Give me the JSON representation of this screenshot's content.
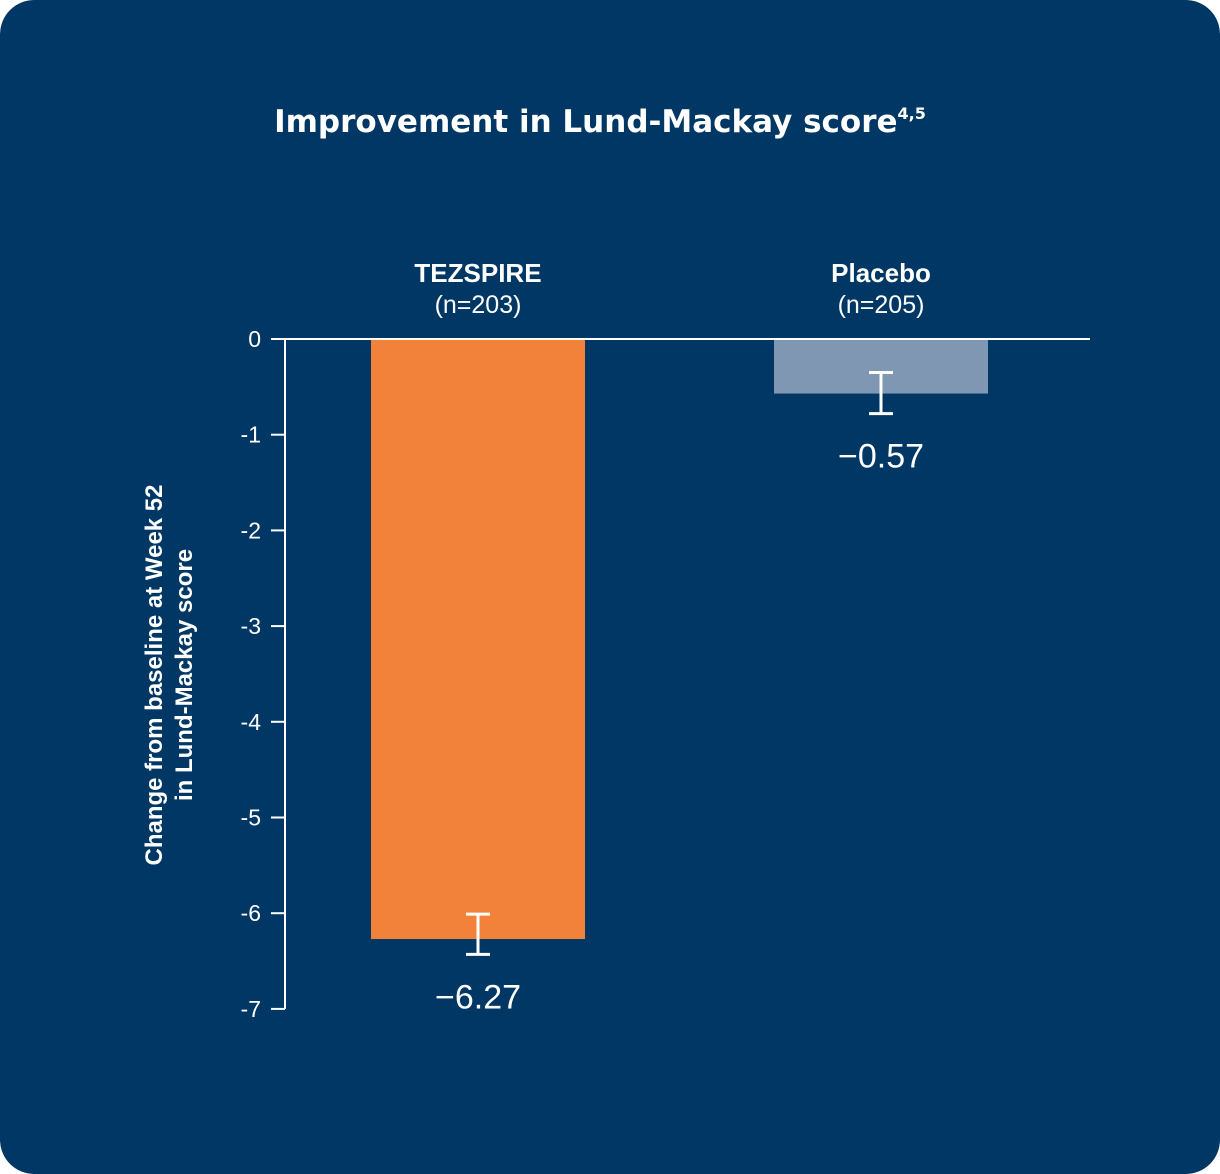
{
  "chart_data": {
    "type": "bar",
    "title": "Improvement in Lund-Mackay score",
    "title_superscript": "4,5",
    "ylabel_lines": [
      "Change from baseline at Week 52",
      "in Lund-Mackay score"
    ],
    "xlabel": "",
    "categories": [
      "TEZSPIRE",
      "Placebo"
    ],
    "category_n": [
      "(n=203)",
      "(n=205)"
    ],
    "values": [
      -6.27,
      -0.57
    ],
    "data_labels": [
      "−6.27",
      "−0.57"
    ],
    "error_bars": [
      {
        "low": -6.43,
        "high": -6.01
      },
      {
        "low": -0.78,
        "high": -0.35
      }
    ],
    "ylim": [
      -7,
      0
    ],
    "yticks": [
      0,
      -1,
      -2,
      -3,
      -4,
      -5,
      -6,
      -7
    ],
    "ytick_labels": [
      "0",
      "-1",
      "-2",
      "-3",
      "-4",
      "-5",
      "-6",
      "-7"
    ],
    "grid": false,
    "colors": {
      "background": "#003764",
      "bars": [
        "#f2823a",
        "#7f97b2"
      ],
      "axis": "#ffffff",
      "text": "#ffffff"
    }
  }
}
